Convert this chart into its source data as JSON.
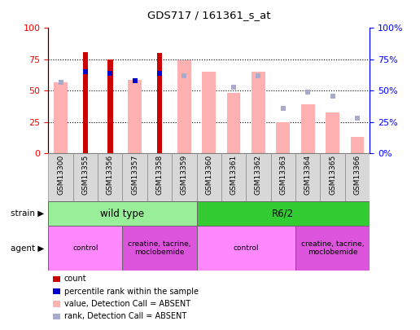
{
  "title": "GDS717 / 161361_s_at",
  "samples": [
    "GSM13300",
    "GSM13355",
    "GSM13356",
    "GSM13357",
    "GSM13358",
    "GSM13359",
    "GSM13360",
    "GSM13361",
    "GSM13362",
    "GSM13363",
    "GSM13364",
    "GSM13365",
    "GSM13366"
  ],
  "count_values": [
    0,
    81,
    75,
    0,
    80,
    0,
    0,
    0,
    0,
    0,
    0,
    0,
    0
  ],
  "percentile_rank": [
    0,
    65,
    64,
    58,
    64,
    0,
    0,
    0,
    0,
    0,
    0,
    0,
    0
  ],
  "value_absent": [
    57,
    0,
    0,
    59,
    0,
    74,
    65,
    48,
    65,
    25,
    39,
    33,
    13
  ],
  "rank_absent": [
    57,
    0,
    0,
    0,
    0,
    62,
    0,
    53,
    62,
    36,
    49,
    46,
    28
  ],
  "ylim": [
    0,
    100
  ],
  "yticks": [
    0,
    25,
    50,
    75,
    100
  ],
  "color_count": "#cc0000",
  "color_rank": "#0000cc",
  "color_value_absent": "#ffb0b0",
  "color_rank_absent": "#aaaacc",
  "strain_groups": [
    {
      "text": "wild type",
      "start": 0,
      "end": 5,
      "color": "#99ee99"
    },
    {
      "text": "R6/2",
      "start": 6,
      "end": 12,
      "color": "#33cc33"
    }
  ],
  "agent_groups": [
    {
      "text": "control",
      "start": 0,
      "end": 2,
      "color": "#ff88ff"
    },
    {
      "text": "creatine, tacrine,\nmoclobemide",
      "start": 3,
      "end": 5,
      "color": "#dd55dd"
    },
    {
      "text": "control",
      "start": 6,
      "end": 9,
      "color": "#ff88ff"
    },
    {
      "text": "creatine, tacrine,\nmoclobemide",
      "start": 10,
      "end": 12,
      "color": "#dd55dd"
    }
  ],
  "legend_items": [
    {
      "label": "count",
      "color": "#cc0000"
    },
    {
      "label": "percentile rank within the sample",
      "color": "#0000cc"
    },
    {
      "label": "value, Detection Call = ABSENT",
      "color": "#ffb0b0"
    },
    {
      "label": "rank, Detection Call = ABSENT",
      "color": "#aaaacc"
    }
  ]
}
